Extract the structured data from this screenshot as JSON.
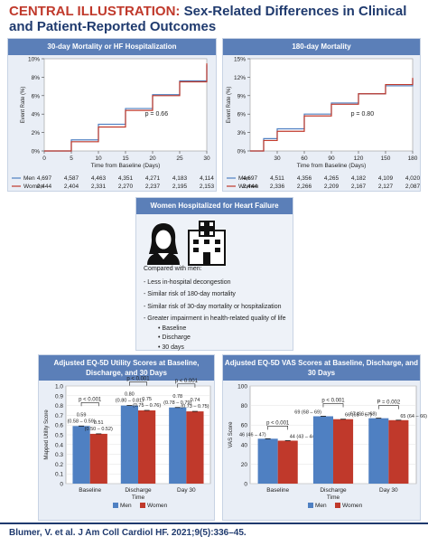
{
  "title": {
    "lead": "CENTRAL ILLUSTRATION:",
    "rest": "Sex-Related Differences in Clinical and Patient-Reported Outcomes"
  },
  "colors": {
    "men": "#4f80c2",
    "women": "#c0392b",
    "accent": "#5b7fb8",
    "title_red": "#c0392b",
    "navy": "#1f3a6e"
  },
  "center": {
    "heading": "Women Hospitalized for Heart Failure",
    "icons": [
      "woman-icon",
      "hospital-icon"
    ],
    "intro": "Compared with men:",
    "bullets": [
      "Less in-hospital decongestion",
      "Similar risk of 180-day mortality",
      "Similar risk of 30-day mortality or hospitalization",
      "Greater impairment in health-related quality of life"
    ],
    "sub_bullets": [
      "Baseline",
      "Discharge",
      "30 days"
    ]
  },
  "citation": "Blumer, V. et al. J Am Coll Cardiol HF. 2021;9(5):336–45.",
  "chart_data": [
    {
      "type": "line",
      "title": "30-day Mortality or HF Hospitalization",
      "xlabel": "Time from Baseline (Days)",
      "ylabel": "Event Rate (%)",
      "xlim": [
        0,
        30
      ],
      "ylim": [
        0,
        10
      ],
      "xticks": [
        0,
        5,
        10,
        15,
        20,
        25,
        30
      ],
      "yticks": [
        "0%",
        "2%",
        "4%",
        "6%",
        "8%",
        "10%"
      ],
      "annotation": "p = 0.66",
      "series": [
        {
          "name": "Men",
          "x": [
            0,
            5,
            10,
            15,
            20,
            25,
            30
          ],
          "values": [
            0,
            1.2,
            2.9,
            4.6,
            6.1,
            7.6,
            9.3
          ]
        },
        {
          "name": "Women",
          "x": [
            0,
            5,
            10,
            15,
            20,
            25,
            30
          ],
          "values": [
            0,
            1.0,
            2.6,
            4.4,
            6.0,
            7.5,
            9.5
          ]
        }
      ],
      "risk_table": {
        "times": [
          0,
          5,
          10,
          15,
          20,
          25,
          30
        ],
        "rows": [
          {
            "label": "Men",
            "values": [
              "4,697",
              "4,587",
              "4,463",
              "4,351",
              "4,271",
              "4,183",
              "4,114"
            ]
          },
          {
            "label": "Women",
            "values": [
              "2,444",
              "2,404",
              "2,331",
              "2,270",
              "2,237",
              "2,195",
              "2,153"
            ]
          }
        ]
      }
    },
    {
      "type": "line",
      "title": "180-day Mortality",
      "xlabel": "Time from Baseline (Days)",
      "ylabel": "Event Rate (%)",
      "xlim": [
        0,
        180
      ],
      "ylim": [
        0,
        15
      ],
      "xticks": [
        30,
        60,
        90,
        120,
        150,
        180
      ],
      "yticks": [
        "0%",
        "3%",
        "6%",
        "9%",
        "12%",
        "15%"
      ],
      "annotation": "p = 0.80",
      "series": [
        {
          "name": "Men",
          "x": [
            0,
            15,
            30,
            60,
            90,
            120,
            150,
            180
          ],
          "values": [
            0,
            2.0,
            3.6,
            6.0,
            7.8,
            9.3,
            10.6,
            11.7
          ]
        },
        {
          "name": "Women",
          "x": [
            0,
            15,
            30,
            60,
            90,
            120,
            150,
            180
          ],
          "values": [
            0,
            1.7,
            3.2,
            5.7,
            7.6,
            9.3,
            10.8,
            11.9
          ]
        }
      ],
      "risk_table": {
        "times": [
          0,
          30,
          60,
          90,
          120,
          150,
          180
        ],
        "rows": [
          {
            "label": "Men",
            "values": [
              "4,697",
              "4,511",
              "4,356",
              "4,265",
              "4,182",
              "4,109",
              "4,020"
            ]
          },
          {
            "label": "Women",
            "values": [
              "2,444",
              "2,336",
              "2,266",
              "2,209",
              "2,167",
              "2,127",
              "2,087"
            ]
          }
        ]
      }
    },
    {
      "type": "bar",
      "title": "Adjusted EQ-5D Utility Scores at Baseline, Discharge, and 30 Days",
      "xlabel": "Time",
      "ylabel": "Mapped Utility Score",
      "ylim": [
        0,
        1.0
      ],
      "yticks": [
        "0",
        "0.1",
        "0.2",
        "0.3",
        "0.4",
        "0.5",
        "0.6",
        "0.7",
        "0.8",
        "0.9",
        "1.0"
      ],
      "categories": [
        "Baseline",
        "Discharge",
        "Day 30"
      ],
      "series": [
        {
          "name": "Men",
          "values": [
            0.59,
            0.8,
            0.78
          ],
          "labels": [
            "0.59\n(0.58 – 0.59)",
            "0.80\n(0.80 – 0.81)",
            "0.78\n(0.78 – 0.79)"
          ]
        },
        {
          "name": "Women",
          "values": [
            0.51,
            0.75,
            0.74
          ],
          "labels": [
            "0.51\n(0.50 – 0.52)",
            "0.75\n(0.75 – 0.76)",
            "0.74\n(0.73 – 0.75)"
          ]
        }
      ],
      "pvalues": [
        "p < 0.001",
        "p < 0.001",
        "p < 0.001"
      ],
      "legend": [
        "Men",
        "Women"
      ]
    },
    {
      "type": "bar",
      "title": "Adjusted EQ-5D VAS Scores at Baseline, Discharge, and 30 Days",
      "xlabel": "Time",
      "ylabel": "VAS Score",
      "ylim": [
        0,
        100
      ],
      "yticks": [
        "0",
        "20",
        "40",
        "60",
        "80",
        "100"
      ],
      "categories": [
        "Baseline",
        "Discharge",
        "Day 30"
      ],
      "series": [
        {
          "name": "Men",
          "values": [
            46,
            69,
            67
          ],
          "labels": [
            "46 (46 – 47)",
            "69 (68 – 69)",
            "67 (66 – 68)"
          ]
        },
        {
          "name": "Women",
          "values": [
            44,
            66,
            65
          ],
          "labels": [
            "44 (43 – 44)",
            "66 (65 – 67)",
            "65 (64 – 66)"
          ]
        }
      ],
      "pvalues": [
        "p < 0.001",
        "p < 0.001",
        "P = 0.002"
      ],
      "legend": [
        "Men",
        "Women"
      ]
    }
  ]
}
